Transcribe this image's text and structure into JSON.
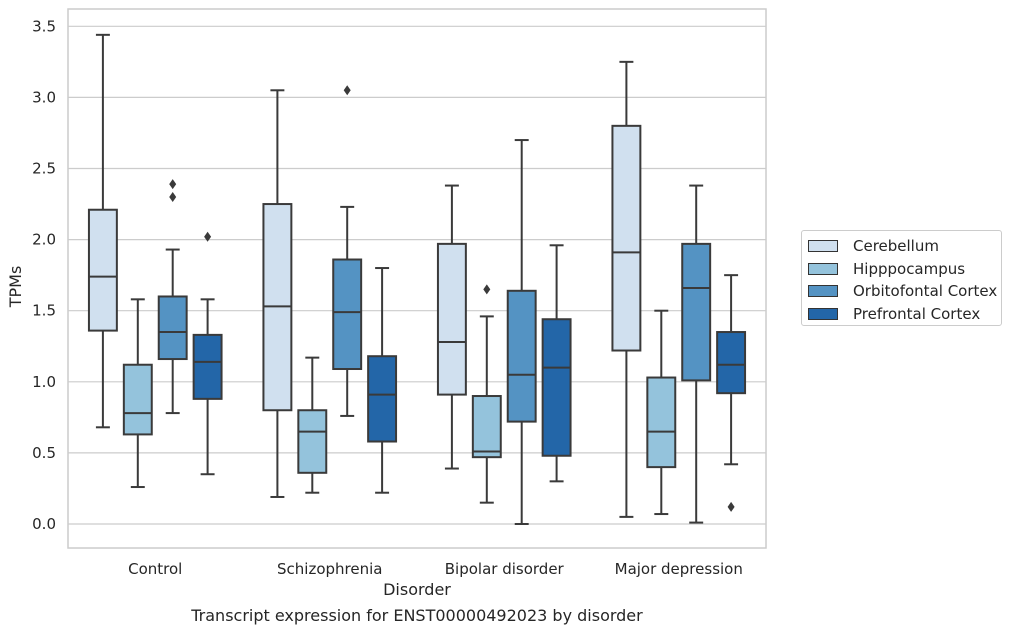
{
  "chart_data": {
    "type": "box",
    "title": "",
    "caption": "Transcript expression for ENST00000492023 by disorder",
    "xlabel": "Disorder",
    "ylabel": "TPMs",
    "ylim": [
      -0.16,
      3.6
    ],
    "yticks": [
      "0.0",
      "0.5",
      "1.0",
      "1.5",
      "2.0",
      "2.5",
      "3.0",
      "3.5"
    ],
    "grid": "horizontal",
    "legend_position": "right",
    "categories": [
      "Control",
      "Schizophrenia",
      "Bipolar disorder",
      "Major depression"
    ],
    "series": [
      {
        "name": "Cerebellum",
        "color": "#d0e0ef",
        "boxes": [
          {
            "whislo": 0.68,
            "q1": 1.36,
            "med": 1.74,
            "q3": 2.21,
            "whishi": 3.44,
            "fliers": []
          },
          {
            "whislo": 0.19,
            "q1": 0.8,
            "med": 1.53,
            "q3": 2.25,
            "whishi": 3.05,
            "fliers": []
          },
          {
            "whislo": 0.39,
            "q1": 0.91,
            "med": 1.28,
            "q3": 1.97,
            "whishi": 2.38,
            "fliers": []
          },
          {
            "whislo": 0.05,
            "q1": 1.22,
            "med": 1.91,
            "q3": 2.8,
            "whishi": 3.25,
            "fliers": []
          }
        ]
      },
      {
        "name": "Hipppocampus",
        "color": "#94c3dc",
        "boxes": [
          {
            "whislo": 0.26,
            "q1": 0.63,
            "med": 0.78,
            "q3": 1.12,
            "whishi": 1.58,
            "fliers": []
          },
          {
            "whislo": 0.22,
            "q1": 0.36,
            "med": 0.65,
            "q3": 0.8,
            "whishi": 1.17,
            "fliers": []
          },
          {
            "whislo": 0.15,
            "q1": 0.47,
            "med": 0.51,
            "q3": 0.9,
            "whishi": 1.46,
            "fliers": [
              1.65
            ]
          },
          {
            "whislo": 0.07,
            "q1": 0.4,
            "med": 0.65,
            "q3": 1.03,
            "whishi": 1.5,
            "fliers": []
          }
        ]
      },
      {
        "name": "Orbitofontal Cortex",
        "color": "#5493c3",
        "boxes": [
          {
            "whislo": 0.78,
            "q1": 1.16,
            "med": 1.35,
            "q3": 1.6,
            "whishi": 1.93,
            "fliers": [
              2.3,
              2.39
            ]
          },
          {
            "whislo": 0.76,
            "q1": 1.09,
            "med": 1.49,
            "q3": 1.86,
            "whishi": 2.23,
            "fliers": [
              3.05
            ]
          },
          {
            "whislo": 0.0,
            "q1": 0.72,
            "med": 1.05,
            "q3": 1.64,
            "whishi": 2.7,
            "fliers": []
          },
          {
            "whislo": 0.01,
            "q1": 1.01,
            "med": 1.66,
            "q3": 1.97,
            "whishi": 2.38,
            "fliers": []
          }
        ]
      },
      {
        "name": "Prefrontal Cortex",
        "color": "#2366a8",
        "boxes": [
          {
            "whislo": 0.35,
            "q1": 0.88,
            "med": 1.14,
            "q3": 1.33,
            "whishi": 1.58,
            "fliers": [
              2.02
            ]
          },
          {
            "whislo": 0.22,
            "q1": 0.58,
            "med": 0.91,
            "q3": 1.18,
            "whishi": 1.8,
            "fliers": []
          },
          {
            "whislo": 0.3,
            "q1": 0.48,
            "med": 1.1,
            "q3": 1.44,
            "whishi": 1.96,
            "fliers": []
          },
          {
            "whislo": 0.42,
            "q1": 0.92,
            "med": 1.12,
            "q3": 1.35,
            "whishi": 1.75,
            "fliers": [
              0.12
            ]
          }
        ]
      }
    ]
  }
}
